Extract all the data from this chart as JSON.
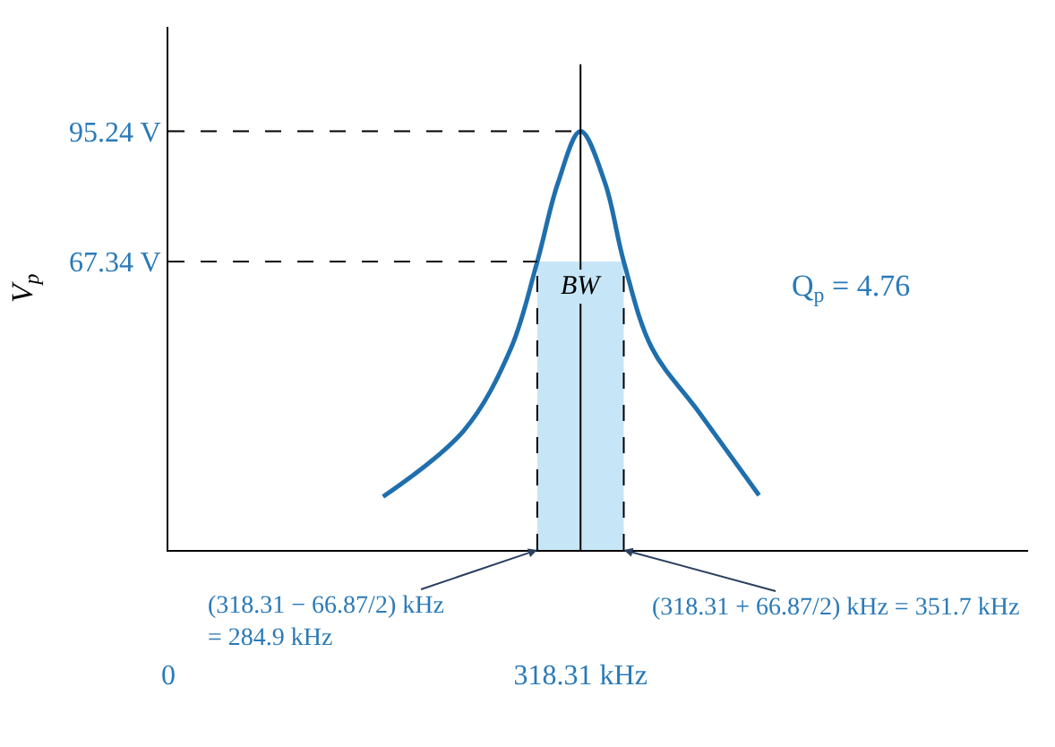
{
  "chart_data": {
    "type": "line",
    "ylabel": "V$_{p}$",
    "x": [
      165.8,
      228.3,
      264.6,
      284.9,
      300.9,
      318.31,
      337.2,
      351.7,
      373.5,
      409.8,
      456.2
    ],
    "series": [
      {
        "color": "#1f6fad",
        "values": [
          17.0,
          31.2,
          48.8,
          67.34,
          84.2,
          95.24,
          84.2,
          67.34,
          48.8,
          35.1,
          17.3
        ]
      }
    ],
    "xlim": [
      0,
      664
    ],
    "ylim": [
      5.6,
      117.6
    ],
    "xticks": [
      0,
      {
        "value": 318.31,
        "label": "318.31 kHz"
      }
    ],
    "yticks": [
      {
        "value": 67.34,
        "label": "67.34 V"
      },
      {
        "value": 95.24,
        "label": "95.24 V"
      }
    ],
    "ref_lines": [
      {
        "axis": "y",
        "value": 95.24,
        "line_style": "dashed"
      },
      {
        "axis": "y",
        "value": 67.34,
        "line_style": "dashed"
      },
      {
        "axis": "x",
        "value": 318.31,
        "line_style": "solid"
      }
    ],
    "bands": [
      {
        "axis": "x",
        "from": 284.9,
        "to": 351.7,
        "label": "BW",
        "color": "#c6e6f7"
      }
    ],
    "annotations": [
      {
        "text": "(318.31 − 66.87/2) kHz\n= 284.9 kHz",
        "x": 284.9,
        "y": 5.6
      },
      {
        "text": "(318.31 + 66.87/2) kHz = 351.7 kHz",
        "x": 351.7,
        "y": 5.6
      },
      "Q$_{p}$ = 4.76"
    ],
    "grid": false,
    "legend": false,
    "marker": "none",
    "line_style": "solid"
  }
}
